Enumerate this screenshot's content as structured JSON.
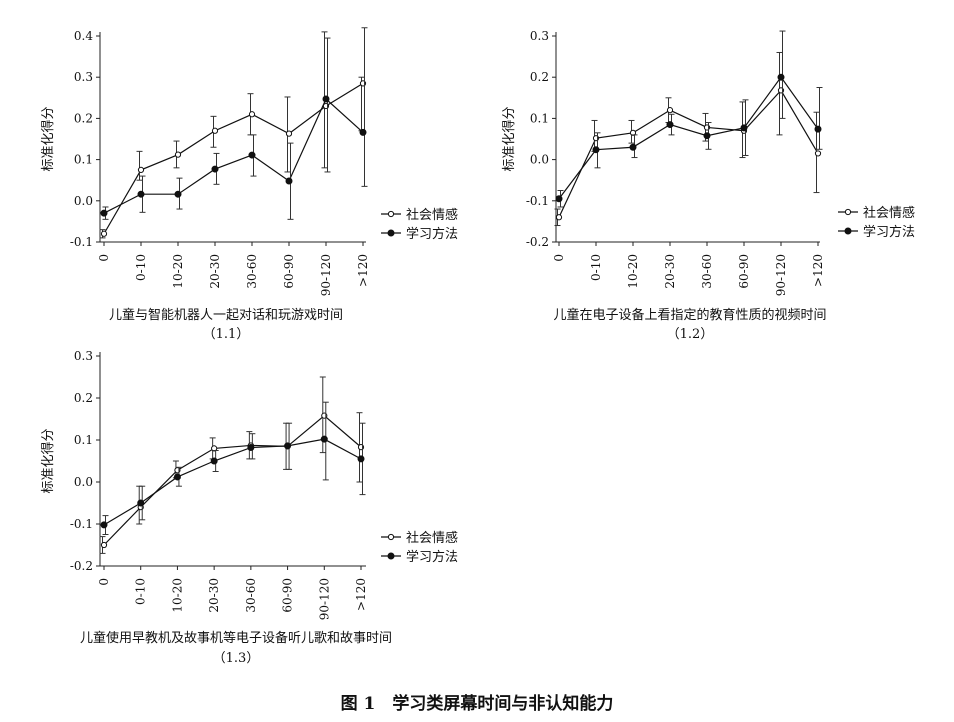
{
  "figure": {
    "caption": "图 1　学习类屏幕时间与非认知能力"
  },
  "chart_data": [
    {
      "type": "line",
      "subtitle": "儿童与智能机器人一起对话和玩游戏时间",
      "panel_label": "（1.1）",
      "ylabel": "标准化得分",
      "categories": [
        "0",
        "0-10",
        "10-20",
        "20-30",
        "30-60",
        "60-90",
        "90-120",
        ">120"
      ],
      "ylim": [
        -0.1,
        0.4
      ],
      "yticks": [
        -0.1,
        0.0,
        0.1,
        0.2,
        0.3,
        0.4
      ],
      "ytick_labels": [
        "-0.1",
        "0.0",
        "0.1",
        "0.2",
        "0.3",
        "0.4"
      ],
      "grid": false,
      "legend_position": "right",
      "series": [
        {
          "name": "社会情感",
          "marker": "open-circle",
          "values": [
            -0.08,
            0.075,
            0.112,
            0.17,
            0.21,
            0.163,
            0.23,
            0.285
          ],
          "err_low": [
            -0.09,
            0.05,
            0.08,
            0.13,
            0.16,
            0.07,
            0.08,
            0.17
          ],
          "err_high": [
            -0.07,
            0.12,
            0.145,
            0.205,
            0.26,
            0.252,
            0.41,
            0.3
          ]
        },
        {
          "name": "学习方法",
          "marker": "filled-circle",
          "values": [
            -0.03,
            0.016,
            0.016,
            0.077,
            0.111,
            0.048,
            0.247,
            0.166
          ],
          "err_low": [
            -0.045,
            -0.028,
            -0.02,
            0.04,
            0.06,
            -0.045,
            0.07,
            0.035
          ],
          "err_high": [
            -0.015,
            0.06,
            0.055,
            0.115,
            0.16,
            0.14,
            0.395,
            0.42
          ]
        }
      ]
    },
    {
      "type": "line",
      "subtitle": "儿童在电子设备上看指定的教育性质的视频时间",
      "panel_label": "（1.2）",
      "ylabel": "标准化得分",
      "categories": [
        "0",
        "0-10",
        "10-20",
        "20-30",
        "30-60",
        "60-90",
        "90-120",
        ">120"
      ],
      "ylim": [
        -0.2,
        0.3
      ],
      "yticks": [
        -0.2,
        -0.1,
        0.0,
        0.1,
        0.2,
        0.3
      ],
      "ytick_labels": [
        "-0.2",
        "-0.1",
        "0.0",
        "0.1",
        "0.2",
        "0.3"
      ],
      "grid": false,
      "legend_position": "right",
      "series": [
        {
          "name": "社会情感",
          "marker": "open-circle",
          "values": [
            -0.14,
            0.052,
            0.065,
            0.12,
            0.078,
            0.07,
            0.168,
            0.015
          ],
          "err_low": [
            -0.16,
            0.02,
            0.04,
            0.09,
            0.045,
            0.005,
            0.06,
            -0.08
          ],
          "err_high": [
            -0.12,
            0.095,
            0.095,
            0.15,
            0.112,
            0.14,
            0.26,
            0.115
          ]
        },
        {
          "name": "学习方法",
          "marker": "filled-circle",
          "values": [
            -0.095,
            0.024,
            0.03,
            0.085,
            0.058,
            0.077,
            0.2,
            0.074
          ],
          "err_low": [
            -0.115,
            -0.02,
            0.005,
            0.06,
            0.025,
            0.01,
            0.1,
            0.025
          ],
          "err_high": [
            -0.075,
            0.065,
            0.06,
            0.11,
            0.09,
            0.145,
            0.312,
            0.175
          ]
        }
      ]
    },
    {
      "type": "line",
      "subtitle": "儿童使用早教机及故事机等电子设备听儿歌和故事时间",
      "panel_label": "（1.3）",
      "ylabel": "标准化得分",
      "categories": [
        "0",
        "0-10",
        "10-20",
        "20-30",
        "30-60",
        "60-90",
        "90-120",
        ">120"
      ],
      "ylim": [
        -0.2,
        0.3
      ],
      "yticks": [
        -0.2,
        -0.1,
        0.0,
        0.1,
        0.2,
        0.3
      ],
      "ytick_labels": [
        "-0.2",
        "-0.1",
        "0.0",
        "0.1",
        "0.2",
        "0.3"
      ],
      "grid": false,
      "legend_position": "right",
      "series": [
        {
          "name": "社会情感",
          "marker": "open-circle",
          "values": [
            -0.15,
            -0.06,
            0.028,
            0.08,
            0.087,
            0.085,
            0.158,
            0.083
          ],
          "err_low": [
            -0.17,
            -0.1,
            0.01,
            0.055,
            0.055,
            0.03,
            0.07,
            0.0
          ],
          "err_high": [
            -0.13,
            -0.01,
            0.05,
            0.105,
            0.12,
            0.14,
            0.25,
            0.165
          ]
        },
        {
          "name": "学习方法",
          "marker": "filled-circle",
          "values": [
            -0.102,
            -0.05,
            0.012,
            0.05,
            0.082,
            0.086,
            0.102,
            0.055
          ],
          "err_low": [
            -0.125,
            -0.09,
            -0.01,
            0.025,
            0.055,
            0.03,
            0.005,
            -0.03
          ],
          "err_high": [
            -0.08,
            -0.01,
            0.035,
            0.075,
            0.115,
            0.14,
            0.19,
            0.14
          ]
        }
      ]
    }
  ]
}
